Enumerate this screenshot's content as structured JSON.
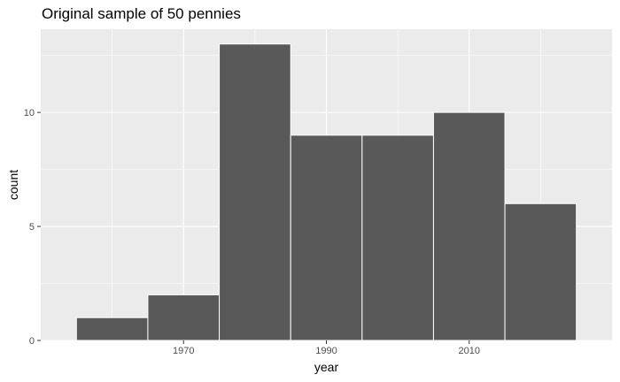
{
  "chart_data": {
    "type": "bar",
    "title": "Original sample of 50 pennies",
    "xlabel": "year",
    "ylabel": "count",
    "bin_width": 10,
    "bins": [
      {
        "start": 1955,
        "end": 1965,
        "count": 1
      },
      {
        "start": 1965,
        "end": 1975,
        "count": 2
      },
      {
        "start": 1975,
        "end": 1985,
        "count": 13
      },
      {
        "start": 1985,
        "end": 1995,
        "count": 9
      },
      {
        "start": 1995,
        "end": 2005,
        "count": 9
      },
      {
        "start": 2005,
        "end": 2015,
        "count": 10
      },
      {
        "start": 2015,
        "end": 2025,
        "count": 6
      }
    ],
    "xlim": [
      1950,
      2030
    ],
    "ylim": [
      0,
      13.65
    ],
    "x_ticks": [
      1970,
      1990,
      2010
    ],
    "y_ticks": [
      0,
      5,
      10
    ],
    "grid": true,
    "colors": {
      "panel": "#ebebeb",
      "grid": "#ffffff",
      "bar_fill": "#595959",
      "bar_outline": "#ffffff"
    }
  }
}
